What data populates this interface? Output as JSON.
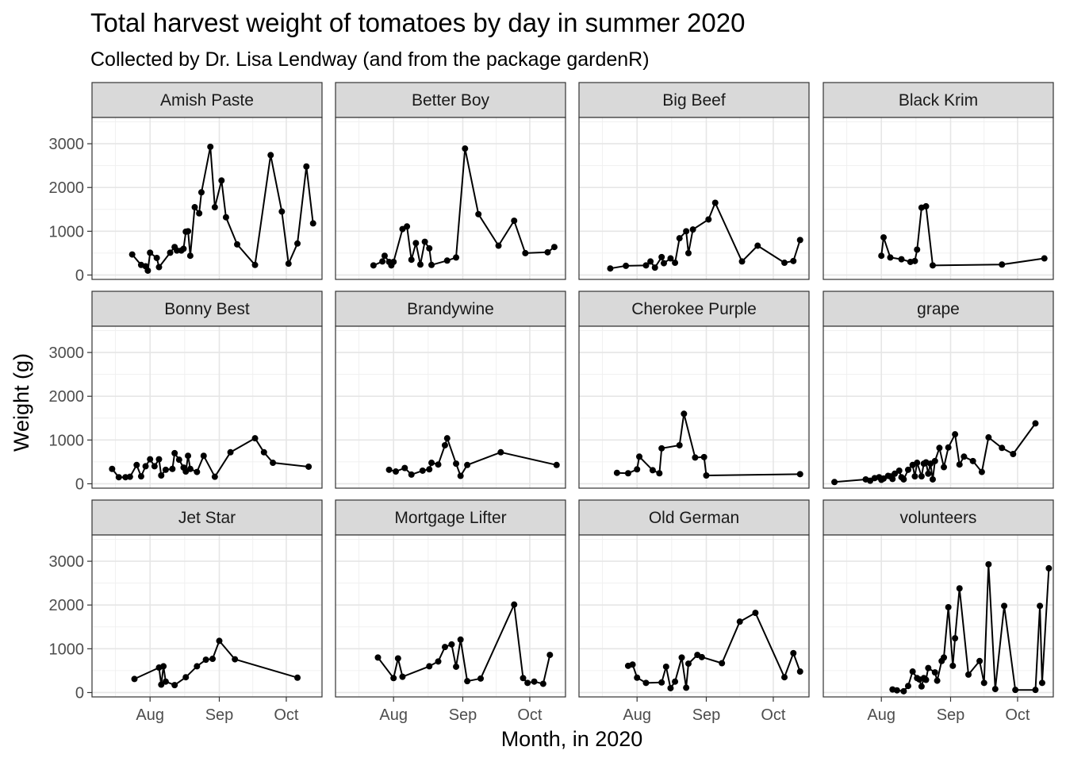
{
  "chart_data": {
    "type": "line",
    "title": "Total harvest weight of tomatoes by day in summer 2020",
    "subtitle": "Collected by Dr. Lisa Lendway (and from the package gardenR)",
    "xlabel": "Month, in 2020",
    "ylabel": "Weight (g)",
    "x_ticks": [
      {
        "label": "Aug",
        "date": "2020-08-01"
      },
      {
        "label": "Sep",
        "date": "2020-09-01"
      },
      {
        "label": "Oct",
        "date": "2020-10-01"
      }
    ],
    "y_ticks": [
      0,
      1000,
      2000,
      3000
    ],
    "ylim": [
      -100,
      3600
    ],
    "xlim": [
      "2020-07-06",
      "2020-10-17"
    ],
    "grid": true,
    "layout": "facet-wrap-4-columns",
    "facets": [
      {
        "name": "Amish Paste",
        "points": [
          [
            "2020-07-24",
            470
          ],
          [
            "2020-07-28",
            230
          ],
          [
            "2020-07-30",
            200
          ],
          [
            "2020-07-31",
            100
          ],
          [
            "2020-08-01",
            510
          ],
          [
            "2020-08-04",
            390
          ],
          [
            "2020-08-05",
            180
          ],
          [
            "2020-08-10",
            510
          ],
          [
            "2020-08-12",
            640
          ],
          [
            "2020-08-13",
            560
          ],
          [
            "2020-08-15",
            560
          ],
          [
            "2020-08-16",
            600
          ],
          [
            "2020-08-17",
            990
          ],
          [
            "2020-08-18",
            1000
          ],
          [
            "2020-08-19",
            440
          ],
          [
            "2020-08-21",
            1550
          ],
          [
            "2020-08-23",
            1410
          ],
          [
            "2020-08-24",
            1890
          ],
          [
            "2020-08-28",
            2930
          ],
          [
            "2020-08-30",
            1550
          ],
          [
            "2020-09-02",
            2160
          ],
          [
            "2020-09-04",
            1320
          ],
          [
            "2020-09-09",
            700
          ],
          [
            "2020-09-17",
            230
          ],
          [
            "2020-09-24",
            2740
          ],
          [
            "2020-09-29",
            1450
          ],
          [
            "2020-10-02",
            260
          ],
          [
            "2020-10-06",
            720
          ],
          [
            "2020-10-10",
            2480
          ],
          [
            "2020-10-13",
            1180
          ]
        ]
      },
      {
        "name": "Better Boy",
        "points": [
          [
            "2020-07-23",
            220
          ],
          [
            "2020-07-27",
            310
          ],
          [
            "2020-07-28",
            440
          ],
          [
            "2020-07-30",
            300
          ],
          [
            "2020-07-31",
            220
          ],
          [
            "2020-08-01",
            300
          ],
          [
            "2020-08-05",
            1050
          ],
          [
            "2020-08-07",
            1110
          ],
          [
            "2020-08-09",
            350
          ],
          [
            "2020-08-11",
            730
          ],
          [
            "2020-08-13",
            240
          ],
          [
            "2020-08-15",
            760
          ],
          [
            "2020-08-17",
            610
          ],
          [
            "2020-08-18",
            230
          ],
          [
            "2020-08-25",
            330
          ],
          [
            "2020-08-29",
            400
          ],
          [
            "2020-09-02",
            2890
          ],
          [
            "2020-09-08",
            1390
          ],
          [
            "2020-09-17",
            670
          ],
          [
            "2020-09-24",
            1240
          ],
          [
            "2020-09-29",
            500
          ],
          [
            "2020-10-09",
            520
          ],
          [
            "2020-10-12",
            640
          ]
        ]
      },
      {
        "name": "Big Beef",
        "points": [
          [
            "2020-07-20",
            150
          ],
          [
            "2020-07-27",
            210
          ],
          [
            "2020-08-05",
            220
          ],
          [
            "2020-08-07",
            310
          ],
          [
            "2020-08-09",
            170
          ],
          [
            "2020-08-12",
            410
          ],
          [
            "2020-08-13",
            270
          ],
          [
            "2020-08-16",
            380
          ],
          [
            "2020-08-18",
            280
          ],
          [
            "2020-08-20",
            840
          ],
          [
            "2020-08-23",
            1000
          ],
          [
            "2020-08-24",
            500
          ],
          [
            "2020-08-26",
            1040
          ],
          [
            "2020-09-02",
            1270
          ],
          [
            "2020-09-05",
            1650
          ],
          [
            "2020-09-17",
            310
          ],
          [
            "2020-09-24",
            670
          ],
          [
            "2020-10-06",
            280
          ],
          [
            "2020-10-10",
            320
          ],
          [
            "2020-10-13",
            800
          ]
        ]
      },
      {
        "name": "Black Krim",
        "points": [
          [
            "2020-08-01",
            440
          ],
          [
            "2020-08-02",
            860
          ],
          [
            "2020-08-05",
            400
          ],
          [
            "2020-08-10",
            360
          ],
          [
            "2020-08-14",
            300
          ],
          [
            "2020-08-16",
            320
          ],
          [
            "2020-08-17",
            580
          ],
          [
            "2020-08-19",
            1540
          ],
          [
            "2020-08-21",
            1570
          ],
          [
            "2020-08-24",
            220
          ],
          [
            "2020-09-24",
            240
          ],
          [
            "2020-10-13",
            380
          ]
        ]
      },
      {
        "name": "Bonny Best",
        "points": [
          [
            "2020-07-15",
            340
          ],
          [
            "2020-07-18",
            150
          ],
          [
            "2020-07-21",
            150
          ],
          [
            "2020-07-23",
            160
          ],
          [
            "2020-07-26",
            430
          ],
          [
            "2020-07-28",
            170
          ],
          [
            "2020-07-30",
            400
          ],
          [
            "2020-08-01",
            560
          ],
          [
            "2020-08-03",
            400
          ],
          [
            "2020-08-05",
            560
          ],
          [
            "2020-08-06",
            190
          ],
          [
            "2020-08-08",
            320
          ],
          [
            "2020-08-11",
            340
          ],
          [
            "2020-08-12",
            700
          ],
          [
            "2020-08-14",
            550
          ],
          [
            "2020-08-16",
            370
          ],
          [
            "2020-08-17",
            280
          ],
          [
            "2020-08-18",
            640
          ],
          [
            "2020-08-19",
            340
          ],
          [
            "2020-08-22",
            270
          ],
          [
            "2020-08-25",
            640
          ],
          [
            "2020-08-30",
            160
          ],
          [
            "2020-09-06",
            720
          ],
          [
            "2020-09-17",
            1040
          ],
          [
            "2020-09-21",
            720
          ],
          [
            "2020-09-25",
            480
          ],
          [
            "2020-10-11",
            390
          ]
        ]
      },
      {
        "name": "Brandywine",
        "points": [
          [
            "2020-07-30",
            320
          ],
          [
            "2020-08-02",
            280
          ],
          [
            "2020-08-06",
            360
          ],
          [
            "2020-08-09",
            210
          ],
          [
            "2020-08-14",
            300
          ],
          [
            "2020-08-17",
            330
          ],
          [
            "2020-08-18",
            480
          ],
          [
            "2020-08-21",
            440
          ],
          [
            "2020-08-24",
            880
          ],
          [
            "2020-08-25",
            1040
          ],
          [
            "2020-08-29",
            460
          ],
          [
            "2020-08-31",
            180
          ],
          [
            "2020-09-03",
            430
          ],
          [
            "2020-09-18",
            720
          ],
          [
            "2020-10-13",
            430
          ]
        ]
      },
      {
        "name": "Cherokee Purple",
        "points": [
          [
            "2020-07-23",
            250
          ],
          [
            "2020-07-28",
            240
          ],
          [
            "2020-08-01",
            330
          ],
          [
            "2020-08-02",
            620
          ],
          [
            "2020-08-08",
            310
          ],
          [
            "2020-08-11",
            240
          ],
          [
            "2020-08-12",
            810
          ],
          [
            "2020-08-20",
            880
          ],
          [
            "2020-08-22",
            1600
          ],
          [
            "2020-08-27",
            600
          ],
          [
            "2020-08-31",
            610
          ],
          [
            "2020-09-01",
            190
          ],
          [
            "2020-10-13",
            220
          ]
        ]
      },
      {
        "name": "grape",
        "points": [
          [
            "2020-07-11",
            40
          ],
          [
            "2020-07-25",
            100
          ],
          [
            "2020-07-27",
            70
          ],
          [
            "2020-07-29",
            130
          ],
          [
            "2020-07-31",
            150
          ],
          [
            "2020-08-01",
            90
          ],
          [
            "2020-08-02",
            120
          ],
          [
            "2020-08-04",
            180
          ],
          [
            "2020-08-05",
            170
          ],
          [
            "2020-08-06",
            110
          ],
          [
            "2020-08-07",
            230
          ],
          [
            "2020-08-09",
            300
          ],
          [
            "2020-08-10",
            150
          ],
          [
            "2020-08-11",
            100
          ],
          [
            "2020-08-13",
            320
          ],
          [
            "2020-08-15",
            430
          ],
          [
            "2020-08-16",
            170
          ],
          [
            "2020-08-17",
            480
          ],
          [
            "2020-08-19",
            170
          ],
          [
            "2020-08-20",
            460
          ],
          [
            "2020-08-21",
            490
          ],
          [
            "2020-08-22",
            230
          ],
          [
            "2020-08-23",
            460
          ],
          [
            "2020-08-24",
            100
          ],
          [
            "2020-08-25",
            520
          ],
          [
            "2020-08-27",
            820
          ],
          [
            "2020-08-29",
            380
          ],
          [
            "2020-08-31",
            830
          ],
          [
            "2020-09-03",
            1130
          ],
          [
            "2020-09-05",
            440
          ],
          [
            "2020-09-07",
            620
          ],
          [
            "2020-09-11",
            520
          ],
          [
            "2020-09-15",
            270
          ],
          [
            "2020-09-18",
            1060
          ],
          [
            "2020-09-24",
            820
          ],
          [
            "2020-09-29",
            680
          ],
          [
            "2020-10-09",
            1380
          ]
        ]
      },
      {
        "name": "Jet Star",
        "points": [
          [
            "2020-07-25",
            310
          ],
          [
            "2020-08-05",
            570
          ],
          [
            "2020-08-06",
            180
          ],
          [
            "2020-08-07",
            600
          ],
          [
            "2020-08-08",
            250
          ],
          [
            "2020-08-12",
            170
          ],
          [
            "2020-08-17",
            350
          ],
          [
            "2020-08-22",
            600
          ],
          [
            "2020-08-26",
            750
          ],
          [
            "2020-08-29",
            770
          ],
          [
            "2020-09-01",
            1180
          ],
          [
            "2020-09-08",
            760
          ],
          [
            "2020-10-06",
            340
          ]
        ]
      },
      {
        "name": "Mortgage Lifter",
        "points": [
          [
            "2020-07-25",
            800
          ],
          [
            "2020-08-01",
            330
          ],
          [
            "2020-08-03",
            780
          ],
          [
            "2020-08-05",
            360
          ],
          [
            "2020-08-17",
            600
          ],
          [
            "2020-08-21",
            710
          ],
          [
            "2020-08-24",
            1040
          ],
          [
            "2020-08-27",
            1100
          ],
          [
            "2020-08-29",
            590
          ],
          [
            "2020-08-31",
            1210
          ],
          [
            "2020-09-03",
            260
          ],
          [
            "2020-09-09",
            320
          ],
          [
            "2020-09-24",
            2010
          ],
          [
            "2020-09-28",
            330
          ],
          [
            "2020-09-30",
            220
          ],
          [
            "2020-10-03",
            250
          ],
          [
            "2020-10-07",
            200
          ],
          [
            "2020-10-10",
            860
          ]
        ]
      },
      {
        "name": "Old German",
        "points": [
          [
            "2020-07-28",
            610
          ],
          [
            "2020-07-30",
            640
          ],
          [
            "2020-08-01",
            340
          ],
          [
            "2020-08-05",
            220
          ],
          [
            "2020-08-12",
            230
          ],
          [
            "2020-08-14",
            590
          ],
          [
            "2020-08-16",
            100
          ],
          [
            "2020-08-18",
            250
          ],
          [
            "2020-08-21",
            800
          ],
          [
            "2020-08-23",
            110
          ],
          [
            "2020-08-24",
            660
          ],
          [
            "2020-08-28",
            860
          ],
          [
            "2020-08-30",
            810
          ],
          [
            "2020-09-08",
            670
          ],
          [
            "2020-09-16",
            1620
          ],
          [
            "2020-09-23",
            1820
          ],
          [
            "2020-10-06",
            350
          ],
          [
            "2020-10-10",
            900
          ],
          [
            "2020-10-13",
            480
          ]
        ]
      },
      {
        "name": "volunteers",
        "points": [
          [
            "2020-08-06",
            70
          ],
          [
            "2020-08-08",
            50
          ],
          [
            "2020-08-11",
            30
          ],
          [
            "2020-08-13",
            150
          ],
          [
            "2020-08-15",
            480
          ],
          [
            "2020-08-17",
            330
          ],
          [
            "2020-08-18",
            300
          ],
          [
            "2020-08-19",
            140
          ],
          [
            "2020-08-20",
            330
          ],
          [
            "2020-08-21",
            290
          ],
          [
            "2020-08-22",
            560
          ],
          [
            "2020-08-25",
            460
          ],
          [
            "2020-08-26",
            270
          ],
          [
            "2020-08-28",
            720
          ],
          [
            "2020-08-29",
            800
          ],
          [
            "2020-08-31",
            1950
          ],
          [
            "2020-09-02",
            610
          ],
          [
            "2020-09-03",
            1240
          ],
          [
            "2020-09-05",
            2380
          ],
          [
            "2020-09-09",
            410
          ],
          [
            "2020-09-14",
            720
          ],
          [
            "2020-09-16",
            220
          ],
          [
            "2020-09-18",
            2930
          ],
          [
            "2020-09-21",
            80
          ],
          [
            "2020-09-25",
            1980
          ],
          [
            "2020-09-30",
            60
          ],
          [
            "2020-10-09",
            60
          ],
          [
            "2020-10-11",
            1980
          ],
          [
            "2020-10-12",
            220
          ],
          [
            "2020-10-15",
            2840
          ]
        ]
      }
    ]
  }
}
